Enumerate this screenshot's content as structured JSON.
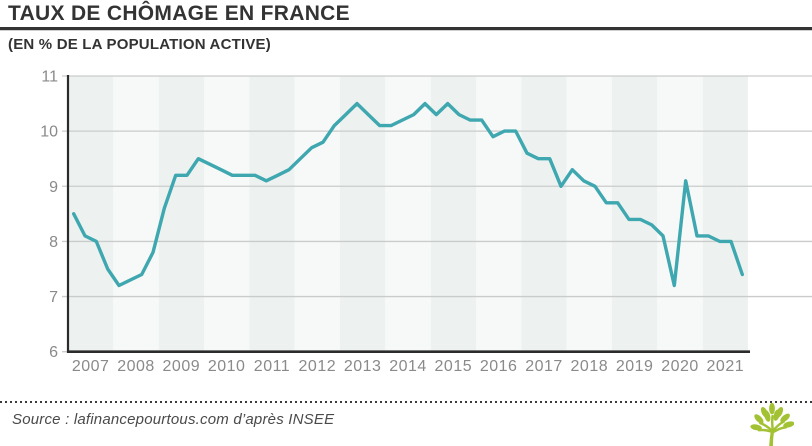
{
  "header": {
    "title": "TAUX DE CHÔMAGE EN FRANCE",
    "subtitle": "(EN % DE LA POPULATION ACTIVE)"
  },
  "footer": {
    "source": "Source : lafinancepourtous.com d’après INSEE",
    "logo": "tree-icon"
  },
  "colors": {
    "line": "#3EA7B0",
    "band_dark": "#EDF2F0",
    "band_light": "#F6F9F7",
    "grid": "#C9CCCB",
    "axis": "#2B2B2B",
    "tick_label": "#8A8A8A",
    "title_text": "#333333",
    "logo_green": "#A3C233",
    "background": "#FFFFFF"
  },
  "chart_data": {
    "type": "line",
    "title": "TAUX DE CHÔMAGE EN FRANCE (EN % DE LA POPULATION ACTIVE)",
    "xlabel": "",
    "ylabel": "",
    "frequency": "quarterly",
    "x_start": "2007-Q1",
    "x_end": "2021-Q4",
    "x_tick_labels": [
      "2007",
      "2008",
      "2009",
      "2010",
      "2011",
      "2012",
      "2013",
      "2014",
      "2015",
      "2016",
      "2017",
      "2018",
      "2019",
      "2020",
      "2021"
    ],
    "y_ticks": [
      6,
      7,
      8,
      9,
      10,
      11
    ],
    "ylim": [
      6,
      11
    ],
    "grid": "horizontal",
    "legend": "none",
    "background_bands": "alternating-yearly",
    "series": [
      {
        "name": "Taux de chômage (% de la population active)",
        "values": [
          8.5,
          8.1,
          8.0,
          7.5,
          7.2,
          7.3,
          7.4,
          7.8,
          8.6,
          9.2,
          9.2,
          9.5,
          9.4,
          9.3,
          9.2,
          9.2,
          9.2,
          9.1,
          9.2,
          9.3,
          9.5,
          9.7,
          9.8,
          10.1,
          10.3,
          10.5,
          10.3,
          10.1,
          10.1,
          10.2,
          10.3,
          10.5,
          10.3,
          10.5,
          10.3,
          10.2,
          10.2,
          9.9,
          10.0,
          10.0,
          9.6,
          9.5,
          9.5,
          9.0,
          9.3,
          9.1,
          9.0,
          8.7,
          8.7,
          8.4,
          8.4,
          8.3,
          8.1,
          7.2,
          9.1,
          8.1,
          8.1,
          8.0,
          8.0,
          7.4
        ]
      }
    ]
  }
}
